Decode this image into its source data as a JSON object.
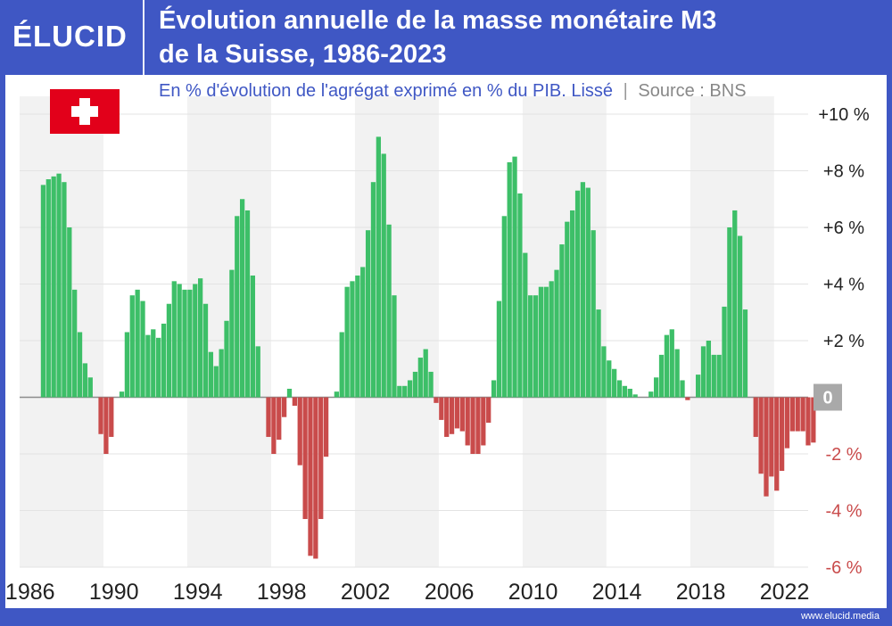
{
  "header": {
    "logo": "ÉLUCID",
    "title_line1": "Évolution annuelle de la masse monétaire M3",
    "title_line2": "de la Suisse, 1986-2023"
  },
  "subtitle": {
    "text": "En % d'évolution de l'agrégat exprimé en % du PIB. Lissé",
    "separator": "|",
    "source": "Source : BNS"
  },
  "footer": {
    "site": "www.elucid.media"
  },
  "colors": {
    "positive": "#3dbf68",
    "negative": "#c94b4b",
    "brand": "#3f57c4",
    "band": "#f2f2f2",
    "zero_badge": "#a9a9a9"
  },
  "chart_data": {
    "type": "bar",
    "title": "Évolution annuelle de la masse monétaire M3 de la Suisse, 1986-2023",
    "subtitle": "En % d'évolution de l'agrégat exprimé en % du PIB. Lissé",
    "ylim": [
      -6,
      10
    ],
    "yticks": [
      {
        "v": 10,
        "label": "+10 %"
      },
      {
        "v": 8,
        "label": "+8 %"
      },
      {
        "v": 6,
        "label": "+6 %"
      },
      {
        "v": 4,
        "label": "+4 %"
      },
      {
        "v": 2,
        "label": "+2 %"
      },
      {
        "v": 0,
        "label": "0"
      },
      {
        "v": -2,
        "label": "-2 %"
      },
      {
        "v": -4,
        "label": "-4 %"
      },
      {
        "v": -6,
        "label": "-6 %"
      }
    ],
    "xticks": [
      "1986",
      "1990",
      "1994",
      "1998",
      "2002",
      "2006",
      "2010",
      "2014",
      "2018",
      "2022"
    ],
    "xtick_years": [
      1986,
      1990,
      1994,
      1998,
      2002,
      2006,
      2010,
      2014,
      2018,
      2022
    ],
    "frequency": "quarterly",
    "start": 1987.0,
    "grid": "horizontal",
    "values": [
      7.5,
      7.7,
      7.8,
      7.9,
      7.6,
      6.0,
      3.8,
      2.3,
      1.2,
      0.7,
      0.0,
      -1.3,
      -2.0,
      -1.4,
      0.0,
      0.2,
      2.3,
      3.6,
      3.8,
      3.4,
      2.2,
      2.4,
      2.1,
      2.6,
      3.3,
      4.1,
      4.0,
      3.8,
      3.8,
      4.0,
      4.2,
      3.3,
      1.6,
      1.1,
      1.7,
      2.7,
      4.5,
      6.4,
      7.0,
      6.6,
      4.3,
      1.8,
      0.0,
      -1.4,
      -2.0,
      -1.5,
      -0.7,
      0.3,
      -0.3,
      -2.4,
      -4.3,
      -5.6,
      -5.7,
      -4.3,
      -2.1,
      0.0,
      0.2,
      2.3,
      3.9,
      4.1,
      4.3,
      4.6,
      5.9,
      7.6,
      9.2,
      8.6,
      6.1,
      3.6,
      0.4,
      0.4,
      0.6,
      0.9,
      1.4,
      1.7,
      0.9,
      -0.2,
      -0.8,
      -1.4,
      -1.3,
      -1.1,
      -1.2,
      -1.7,
      -2.0,
      -2.0,
      -1.7,
      -0.9,
      0.6,
      3.4,
      6.4,
      8.3,
      8.5,
      7.2,
      5.1,
      3.6,
      3.6,
      3.9,
      3.9,
      4.1,
      4.5,
      5.4,
      6.2,
      6.6,
      7.3,
      7.6,
      7.4,
      5.9,
      3.1,
      1.8,
      1.3,
      1.0,
      0.6,
      0.4,
      0.3,
      0.1,
      0.0,
      0.0,
      0.2,
      0.7,
      1.5,
      2.2,
      2.4,
      1.7,
      0.6,
      -0.1,
      0.0,
      0.8,
      1.8,
      2.0,
      1.5,
      1.5,
      3.2,
      6.0,
      6.6,
      5.7,
      3.1,
      0.0,
      -1.4,
      -2.7,
      -3.5,
      -2.8,
      -3.3,
      -2.6,
      -1.8,
      -1.2,
      -1.2,
      -1.2,
      -1.7,
      -1.6
    ]
  }
}
